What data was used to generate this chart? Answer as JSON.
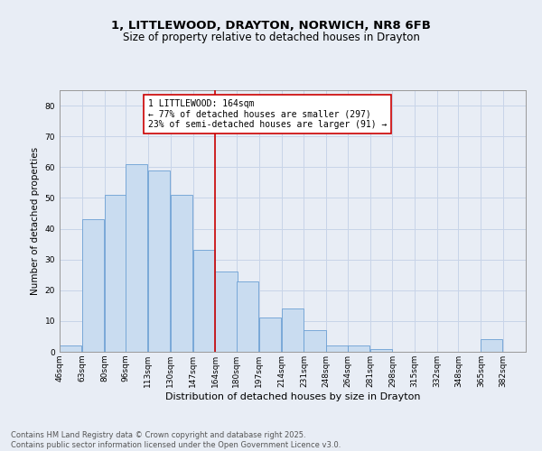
{
  "title1": "1, LITTLEWOOD, DRAYTON, NORWICH, NR8 6FB",
  "title2": "Size of property relative to detached houses in Drayton",
  "xlabel": "Distribution of detached houses by size in Drayton",
  "ylabel": "Number of detached properties",
  "bar_left_edges": [
    46,
    63,
    80,
    96,
    113,
    130,
    147,
    164,
    180,
    197,
    214,
    231,
    248,
    264,
    281,
    298,
    315,
    332,
    348,
    365
  ],
  "bar_heights": [
    2,
    43,
    51,
    61,
    59,
    51,
    33,
    26,
    23,
    11,
    14,
    7,
    2,
    2,
    1,
    0,
    0,
    0,
    0,
    4
  ],
  "bar_color": "#c9dcf0",
  "bar_edgecolor": "#6b9fd4",
  "vline_x": 164,
  "vline_color": "#cc0000",
  "annotation_text": "1 LITTLEWOOD: 164sqm\n← 77% of detached houses are smaller (297)\n23% of semi-detached houses are larger (91) →",
  "annotation_box_edgecolor": "#cc0000",
  "xlim": [
    46,
    399
  ],
  "ylim": [
    0,
    85
  ],
  "yticks": [
    0,
    10,
    20,
    30,
    40,
    50,
    60,
    70,
    80
  ],
  "xtick_labels": [
    "46sqm",
    "63sqm",
    "80sqm",
    "96sqm",
    "113sqm",
    "130sqm",
    "147sqm",
    "164sqm",
    "180sqm",
    "197sqm",
    "214sqm",
    "231sqm",
    "248sqm",
    "264sqm",
    "281sqm",
    "298sqm",
    "315sqm",
    "332sqm",
    "348sqm",
    "365sqm",
    "382sqm"
  ],
  "xtick_positions": [
    46,
    63,
    80,
    96,
    113,
    130,
    147,
    164,
    180,
    197,
    214,
    231,
    248,
    264,
    281,
    298,
    315,
    332,
    348,
    365,
    382
  ],
  "grid_color": "#c8d4e8",
  "background_color": "#e8edf5",
  "footer_text": "Contains HM Land Registry data © Crown copyright and database right 2025.\nContains public sector information licensed under the Open Government Licence v3.0.",
  "title1_fontsize": 9.5,
  "title2_fontsize": 8.5,
  "xlabel_fontsize": 8,
  "ylabel_fontsize": 7.5,
  "tick_fontsize": 6.5,
  "annotation_fontsize": 7,
  "footer_fontsize": 6
}
